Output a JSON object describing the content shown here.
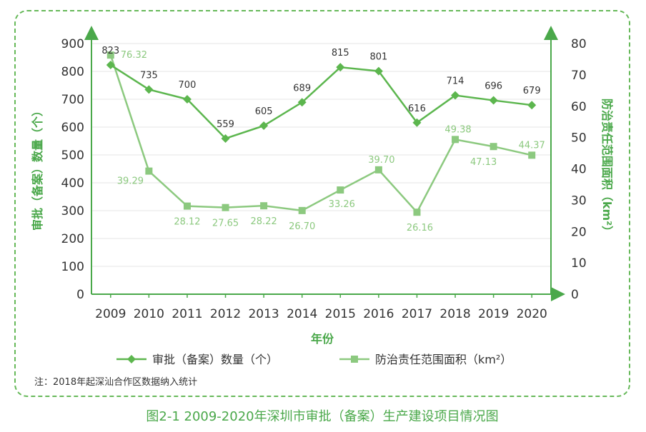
{
  "chart_data": {
    "type": "line",
    "x": [
      "2009",
      "2010",
      "2011",
      "2012",
      "2013",
      "2014",
      "2015",
      "2016",
      "2017",
      "2018",
      "2019",
      "2020"
    ],
    "series": [
      {
        "name": "审批（备案）数量（个）",
        "axis": "left",
        "marker": "diamond",
        "color": "#5cb64e",
        "values": [
          823,
          735,
          700,
          559,
          605,
          689,
          815,
          801,
          616,
          714,
          696,
          679
        ]
      },
      {
        "name": "防治责任范围面积（km²）",
        "axis": "right",
        "marker": "square",
        "color": "#8cc97f",
        "values": [
          76.32,
          39.29,
          28.12,
          27.65,
          28.22,
          26.7,
          33.26,
          39.7,
          26.16,
          49.38,
          47.13,
          44.37
        ]
      }
    ],
    "value_labels": {
      "left": [
        "823",
        "735",
        "700",
        "559",
        "605",
        "689",
        "815",
        "801",
        "616",
        "714",
        "696",
        "679"
      ],
      "right": [
        "76.32",
        "39.29",
        "28.12",
        "27.65",
        "28.22",
        "26.70",
        "33.26",
        "39.70",
        "26.16",
        "49.38",
        "47.13",
        "44.37"
      ]
    },
    "xlabel": "年份",
    "ylabel_left": "审批（备案）数量（个）",
    "ylabel_right": "防治责任范围面积（km²）",
    "ylim_left": [
      0,
      900
    ],
    "ylim_right": [
      0,
      80
    ],
    "yticks_left": [
      0,
      100,
      200,
      300,
      400,
      500,
      600,
      700,
      800,
      900
    ],
    "yticks_right": [
      0,
      10,
      20,
      30,
      40,
      50,
      60,
      70,
      80
    ],
    "grid": true,
    "legend_position": "bottom",
    "note": "注：2018年起深汕合作区数据纳入统计",
    "caption": "图2-1 2009-2020年深圳市审批（备案）生产建设项目情况图",
    "colors": {
      "accent": "#4aa84a",
      "series1": "#5cb64e",
      "series2": "#8cc97f",
      "grid": "#e6e6e6"
    }
  }
}
